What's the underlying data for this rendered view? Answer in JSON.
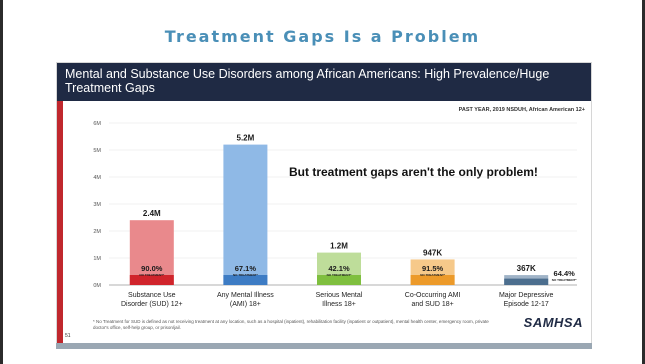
{
  "page": {
    "title": "Treatment Gaps Is a Problem",
    "logo_text": "SAMHSA"
  },
  "slide": {
    "title": "Mental and Substance Use Disorders among African Americans: High Prevalence/Huge Treatment Gaps",
    "source_note": "PAST YEAR, 2019 NSDUH, African American 12+",
    "callout": "But treatment gaps aren't the only problem!",
    "footnote": "* No Treatment for SUD is defined as not receiving treatment at any location, such as a hospital (inpatient), rehabilitation facility (inpatient or outpatient), mental health center, emergency room, private doctor's office, self-help group, or prison/jail.",
    "slide_number": "51"
  },
  "colors": {
    "header_bg": "#1f2a44",
    "title_accent": "#4a8fb7",
    "red_rule": "#c0272d"
  },
  "chart_data": {
    "type": "bar",
    "title": "",
    "xlabel": "",
    "ylabel": "",
    "ylim": [
      0,
      6
    ],
    "y_ticks": [
      "0M",
      "1M",
      "2M",
      "3M",
      "4M",
      "5M",
      "6M"
    ],
    "grid": true,
    "categories": [
      [
        "Substance Use",
        "Disorder (SUD) 12+"
      ],
      [
        "Any Mental Illness",
        "(AMI) 18+"
      ],
      [
        "Serious Mental",
        "Illness 18+"
      ],
      [
        "Co-Occurring AMI",
        "and SUD 18+"
      ],
      [
        "Major Depressive",
        "Episode 12-17"
      ]
    ],
    "total_labels": [
      "2.4M",
      "5.2M",
      "1.2M",
      "947K",
      "367K"
    ],
    "totals_millions": [
      2.4,
      5.2,
      1.2,
      0.947,
      0.367
    ],
    "no_treatment_pct": [
      90.0,
      67.1,
      42.1,
      91.5,
      64.4
    ],
    "pct_labels": [
      "90.0%",
      "67.1%",
      "42.1%",
      "91.5%",
      "64.4%"
    ],
    "no_treatment_label": "NO TREATMENT*",
    "bar_colors": [
      {
        "light": "#e9898c",
        "dark": "#d0242b"
      },
      {
        "light": "#8fb9e6",
        "dark": "#3d7cc4"
      },
      {
        "light": "#bedd9a",
        "dark": "#7fbf3f"
      },
      {
        "light": "#f6c98a",
        "dark": "#ec9a2a"
      },
      {
        "light": "#9fb3c7",
        "dark": "#4c6e8e"
      }
    ]
  }
}
